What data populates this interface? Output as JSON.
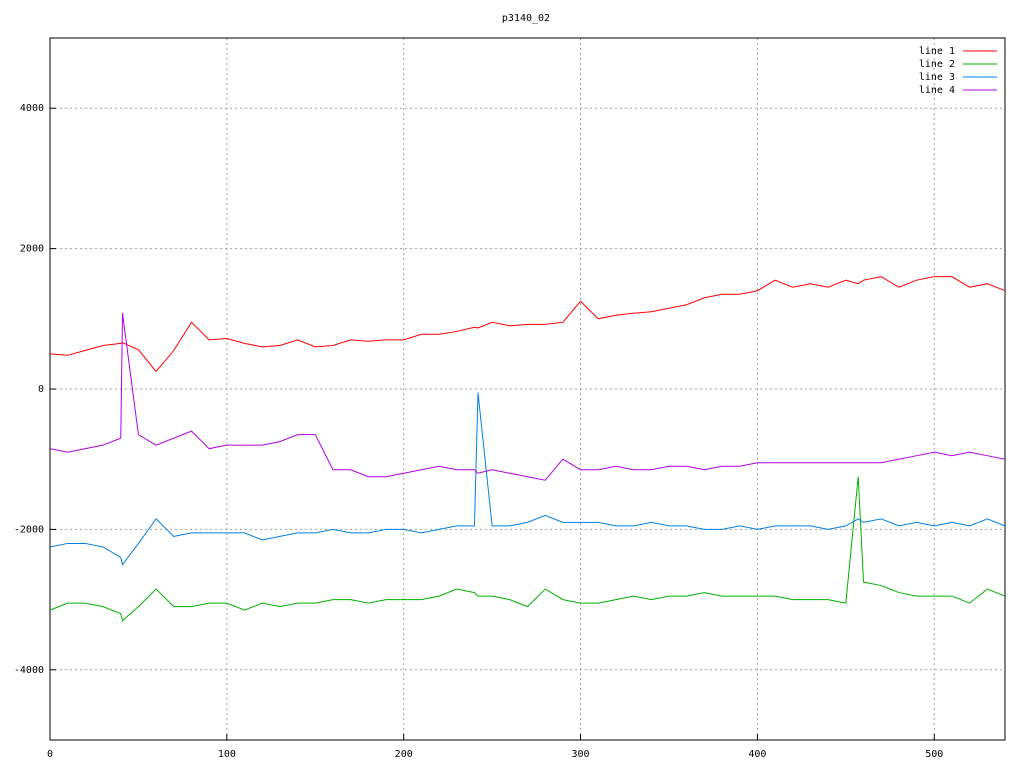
{
  "chart_data": {
    "type": "line",
    "title": "p3140_02",
    "x": [
      0,
      10,
      20,
      30,
      40,
      41,
      50,
      60,
      70,
      80,
      90,
      100,
      110,
      120,
      130,
      140,
      150,
      160,
      170,
      180,
      190,
      200,
      210,
      220,
      230,
      240,
      242,
      250,
      260,
      270,
      280,
      290,
      300,
      310,
      320,
      330,
      340,
      350,
      360,
      370,
      380,
      390,
      400,
      410,
      420,
      430,
      440,
      450,
      457,
      460,
      470,
      480,
      490,
      500,
      510,
      520,
      530,
      540
    ],
    "series": [
      {
        "name": "line 1",
        "color": "#ff0000",
        "values": [
          500,
          480,
          550,
          620,
          650,
          660,
          560,
          250,
          550,
          950,
          700,
          720,
          650,
          600,
          620,
          700,
          600,
          620,
          700,
          680,
          700,
          700,
          780,
          780,
          820,
          880,
          870,
          950,
          900,
          920,
          920,
          950,
          1250,
          1000,
          1050,
          1080,
          1100,
          1150,
          1200,
          1300,
          1350,
          1350,
          1400,
          1550,
          1450,
          1500,
          1450,
          1550,
          1500,
          1550,
          1600,
          1450,
          1550,
          1600,
          1600,
          1450,
          1500,
          1400
        ]
      },
      {
        "name": "line 2",
        "color": "#00b000",
        "values": [
          -3150,
          -3050,
          -3050,
          -3100,
          -3200,
          -3300,
          -3100,
          -2850,
          -3100,
          -3100,
          -3050,
          -3050,
          -3150,
          -3050,
          -3100,
          -3050,
          -3050,
          -3000,
          -3000,
          -3050,
          -3000,
          -3000,
          -3000,
          -2950,
          -2850,
          -2900,
          -2950,
          -2950,
          -3000,
          -3100,
          -2850,
          -3000,
          -3050,
          -3050,
          -3000,
          -2950,
          -3000,
          -2950,
          -2950,
          -2900,
          -2950,
          -2950,
          -2950,
          -2950,
          -3000,
          -3000,
          -3000,
          -3050,
          -1250,
          -2750,
          -2800,
          -2900,
          -2950,
          -2950,
          -2950,
          -3050,
          -2850,
          -2950
        ]
      },
      {
        "name": "line 3",
        "color": "#0080e0",
        "values": [
          -2250,
          -2200,
          -2200,
          -2250,
          -2400,
          -2500,
          -2200,
          -1850,
          -2100,
          -2050,
          -2050,
          -2050,
          -2050,
          -2150,
          -2100,
          -2050,
          -2050,
          -2000,
          -2050,
          -2050,
          -2000,
          -2000,
          -2050,
          -2000,
          -1950,
          -1950,
          -50,
          -1950,
          -1950,
          -1900,
          -1800,
          -1900,
          -1900,
          -1900,
          -1950,
          -1950,
          -1900,
          -1950,
          -1950,
          -2000,
          -2000,
          -1950,
          -2000,
          -1950,
          -1950,
          -1950,
          -2000,
          -1950,
          -1850,
          -1900,
          -1850,
          -1950,
          -1900,
          -1950,
          -1900,
          -1950,
          -1850,
          -1950
        ]
      },
      {
        "name": "line 4",
        "color": "#b000e0",
        "values": [
          -850,
          -900,
          -850,
          -800,
          -700,
          1080,
          -650,
          -800,
          -700,
          -600,
          -850,
          -800,
          -800,
          -800,
          -750,
          -650,
          -650,
          -1150,
          -1150,
          -1250,
          -1250,
          -1200,
          -1150,
          -1100,
          -1150,
          -1150,
          -1200,
          -1150,
          -1200,
          -1250,
          -1300,
          -1000,
          -1150,
          -1150,
          -1100,
          -1150,
          -1150,
          -1100,
          -1100,
          -1150,
          -1100,
          -1100,
          -1050,
          -1050,
          -1050,
          -1050,
          -1050,
          -1050,
          -1050,
          -1050,
          -1050,
          -1000,
          -950,
          -900,
          -950,
          -900,
          -950,
          -1000
        ]
      }
    ],
    "xlim": [
      0,
      540
    ],
    "xticks": [
      0,
      100,
      200,
      300,
      400,
      500
    ],
    "ylim": [
      -5000,
      5000
    ],
    "yticks": [
      -4000,
      -2000,
      0,
      2000,
      4000
    ],
    "grid": true,
    "legend": "top-right"
  }
}
